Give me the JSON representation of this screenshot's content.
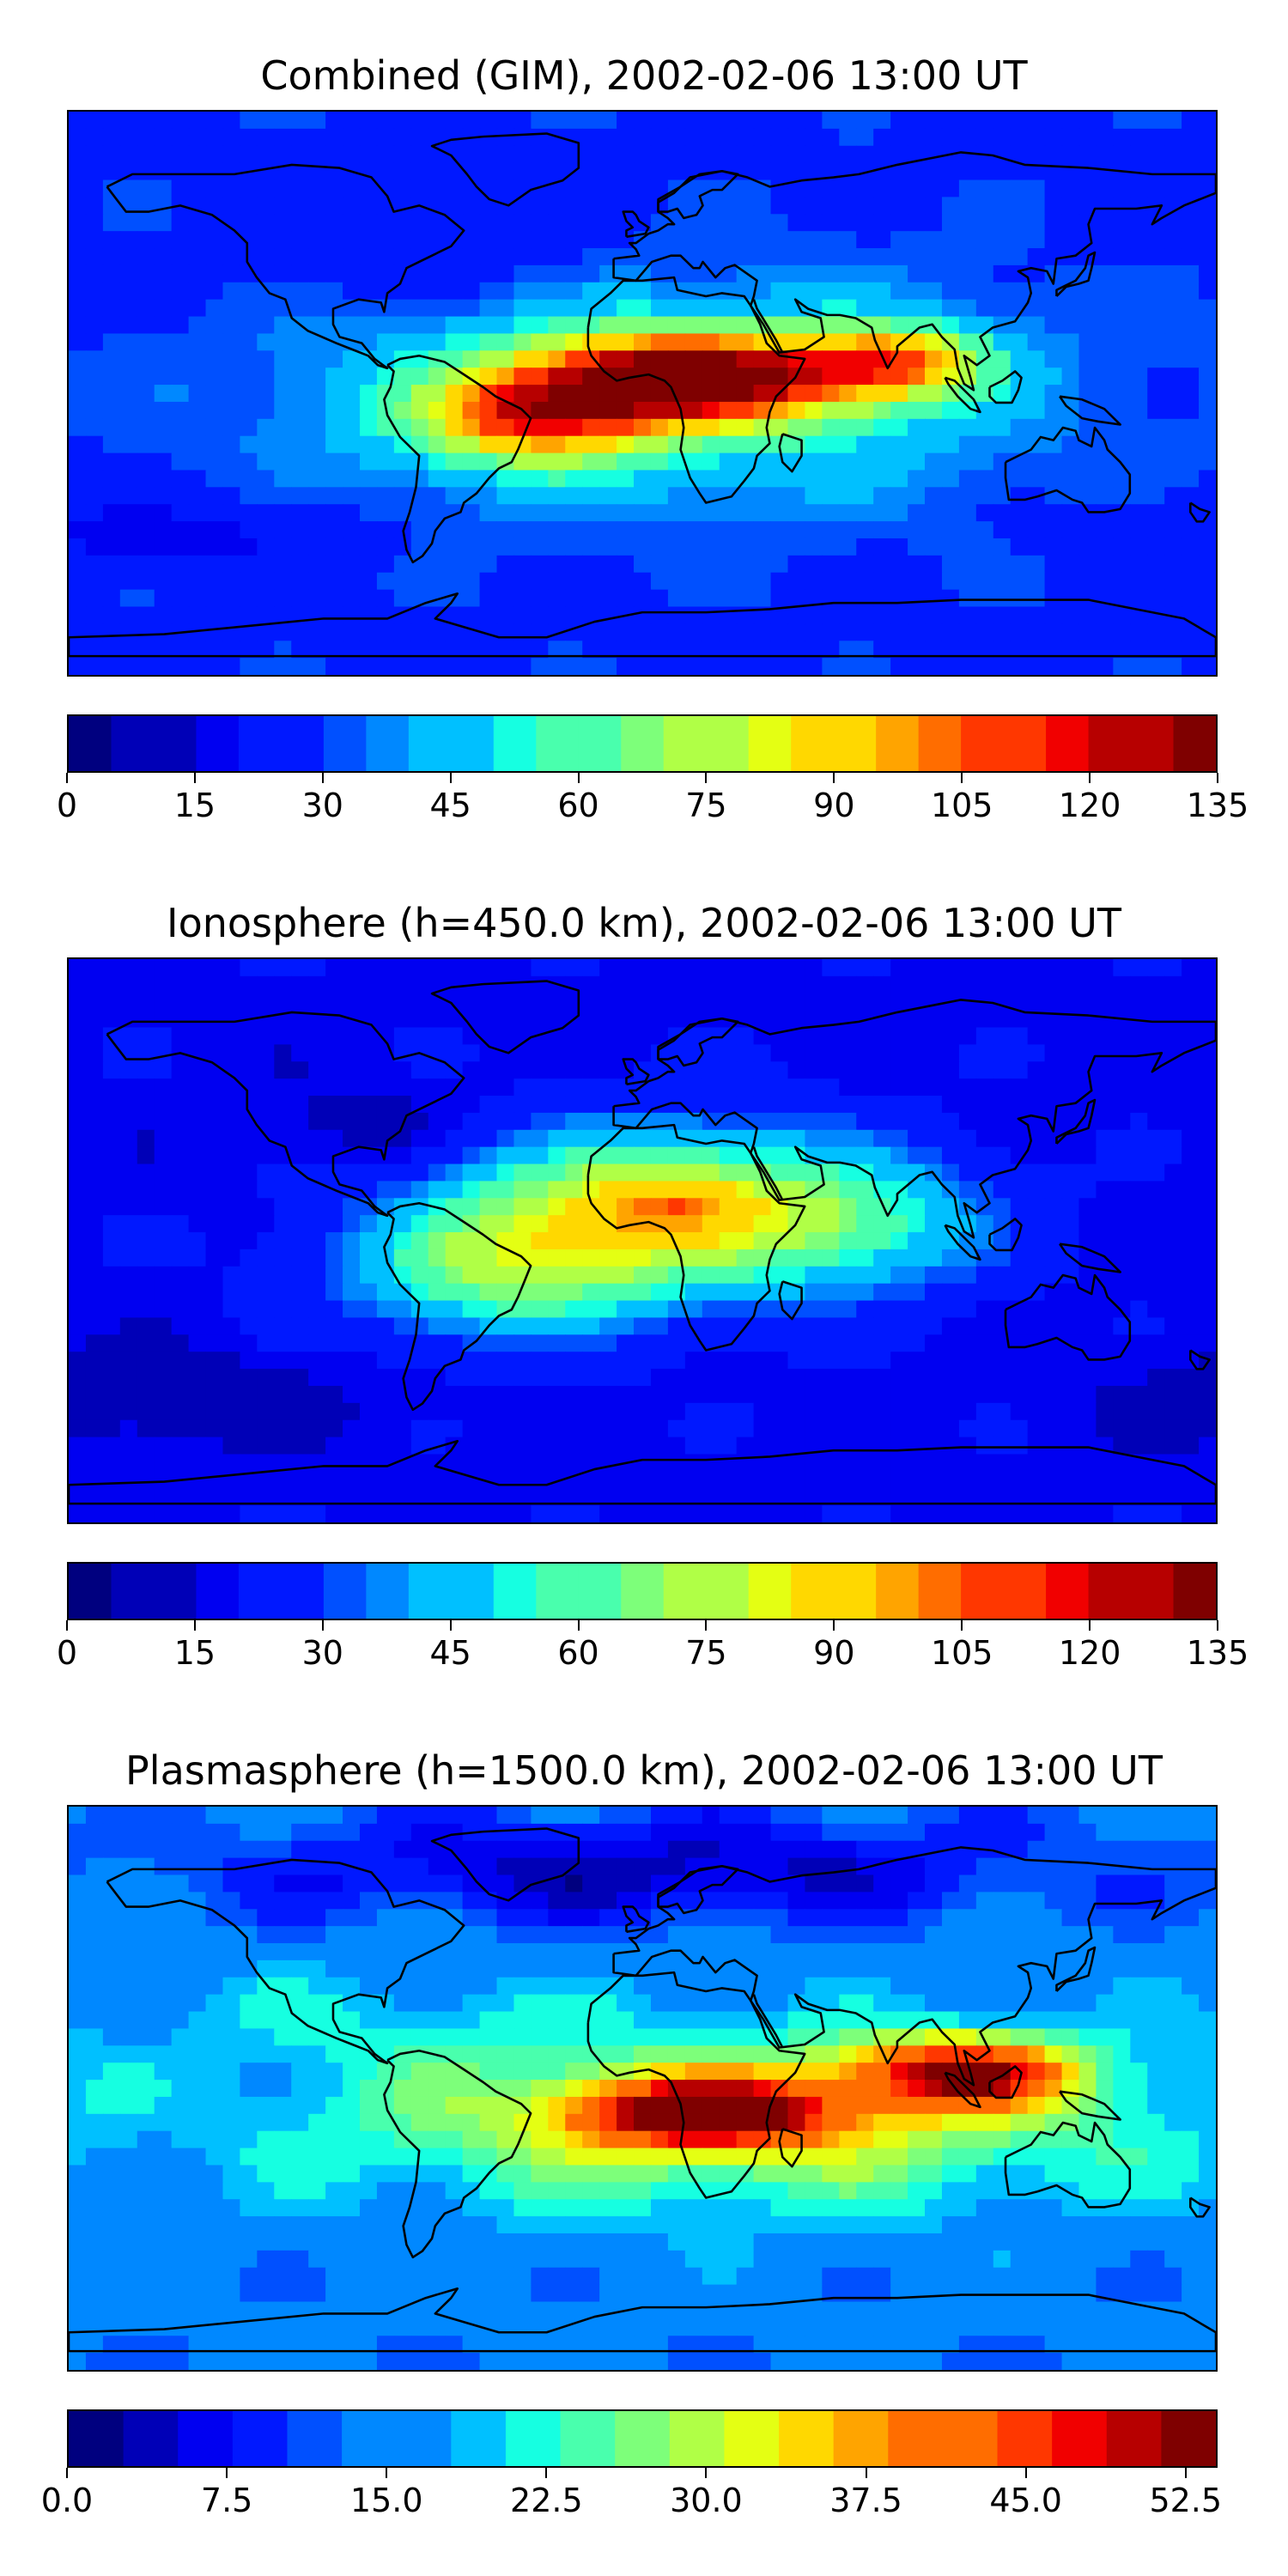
{
  "colormap": [
    "#00007f",
    "#0000b7",
    "#0000f1",
    "#0018ff",
    "#0050ff",
    "#0088ff",
    "#00c0ff",
    "#16ffe1",
    "#49ffad",
    "#7dff7a",
    "#b0ff46",
    "#e4ff13",
    "#ffd800",
    "#ffa400",
    "#ff6d00",
    "#ff3700",
    "#f10000",
    "#b70000",
    "#7f0000"
  ],
  "panels": [
    {
      "title": "Combined (GIM), 2002-02-06 13:00 UT",
      "colorbar": {
        "min": 0,
        "max": 135,
        "levels": 27,
        "tick_labels": [
          "0",
          "15",
          "30",
          "45",
          "60",
          "75",
          "90",
          "105",
          "120",
          "135"
        ],
        "tick_values": [
          0,
          15,
          30,
          45,
          60,
          75,
          90,
          105,
          120,
          135
        ]
      },
      "field": {
        "background": 28,
        "features": [
          {
            "lon": 15,
            "lat": 5,
            "sx": 35,
            "sy": 10,
            "amp": 95
          },
          {
            "lon": -35,
            "lat": -8,
            "sx": 25,
            "sy": 10,
            "amp": 60
          },
          {
            "lon": 80,
            "lat": 10,
            "sx": 20,
            "sy": 8,
            "amp": 55
          },
          {
            "lon": 5,
            "lat": 0,
            "sx": 80,
            "sy": 25,
            "amp": 30
          },
          {
            "lon": -150,
            "lat": -45,
            "sx": 40,
            "sy": 8,
            "amp": -12
          },
          {
            "lon": -60,
            "lat": 40,
            "sx": 40,
            "sy": 15,
            "amp": -8
          }
        ]
      }
    },
    {
      "title": "Ionosphere  (h=450.0 km), 2002-02-06 13:00 UT",
      "colorbar": {
        "min": 0,
        "max": 135,
        "levels": 27,
        "tick_labels": [
          "0",
          "15",
          "30",
          "45",
          "60",
          "75",
          "90",
          "105",
          "120",
          "135"
        ],
        "tick_values": [
          0,
          15,
          30,
          45,
          60,
          75,
          90,
          105,
          120,
          135
        ]
      },
      "field": {
        "background": 18,
        "features": [
          {
            "lon": 5,
            "lat": 10,
            "sx": 45,
            "sy": 18,
            "amp": 65
          },
          {
            "lon": 10,
            "lat": 12,
            "sx": 15,
            "sy": 5,
            "amp": 15
          },
          {
            "lon": -45,
            "lat": -10,
            "sx": 35,
            "sy": 15,
            "amp": 40
          },
          {
            "lon": 70,
            "lat": 5,
            "sx": 30,
            "sy": 15,
            "amp": 25
          },
          {
            "lon": -150,
            "lat": -50,
            "sx": 40,
            "sy": 10,
            "amp": -10
          },
          {
            "lon": -80,
            "lat": 35,
            "sx": 30,
            "sy": 10,
            "amp": -8
          }
        ]
      }
    },
    {
      "title": "Plasmasphere (h=1500.0 km), 2002-02-06 13:00 UT",
      "colorbar": {
        "min": 0,
        "max": 54,
        "levels": 21,
        "tick_labels": [
          "0.0",
          "7.5",
          "15.0",
          "22.5",
          "30.0",
          "37.5",
          "45.0",
          "52.5"
        ],
        "tick_values": [
          0,
          7.5,
          15,
          22.5,
          30,
          37.5,
          45,
          52.5
        ]
      },
      "field": {
        "background": 14,
        "features": [
          {
            "lon": 20,
            "lat": -8,
            "sx": 30,
            "sy": 8,
            "amp": 32
          },
          {
            "lon": 100,
            "lat": 5,
            "sx": 25,
            "sy": 8,
            "amp": 30
          },
          {
            "lon": 30,
            "lat": -10,
            "sx": 110,
            "sy": 22,
            "amp": 16
          },
          {
            "lon": 0,
            "lat": 70,
            "sx": 90,
            "sy": 12,
            "amp": -10
          },
          {
            "lon": -100,
            "lat": 25,
            "sx": 60,
            "sy": 12,
            "amp": 4
          }
        ]
      }
    }
  ]
}
